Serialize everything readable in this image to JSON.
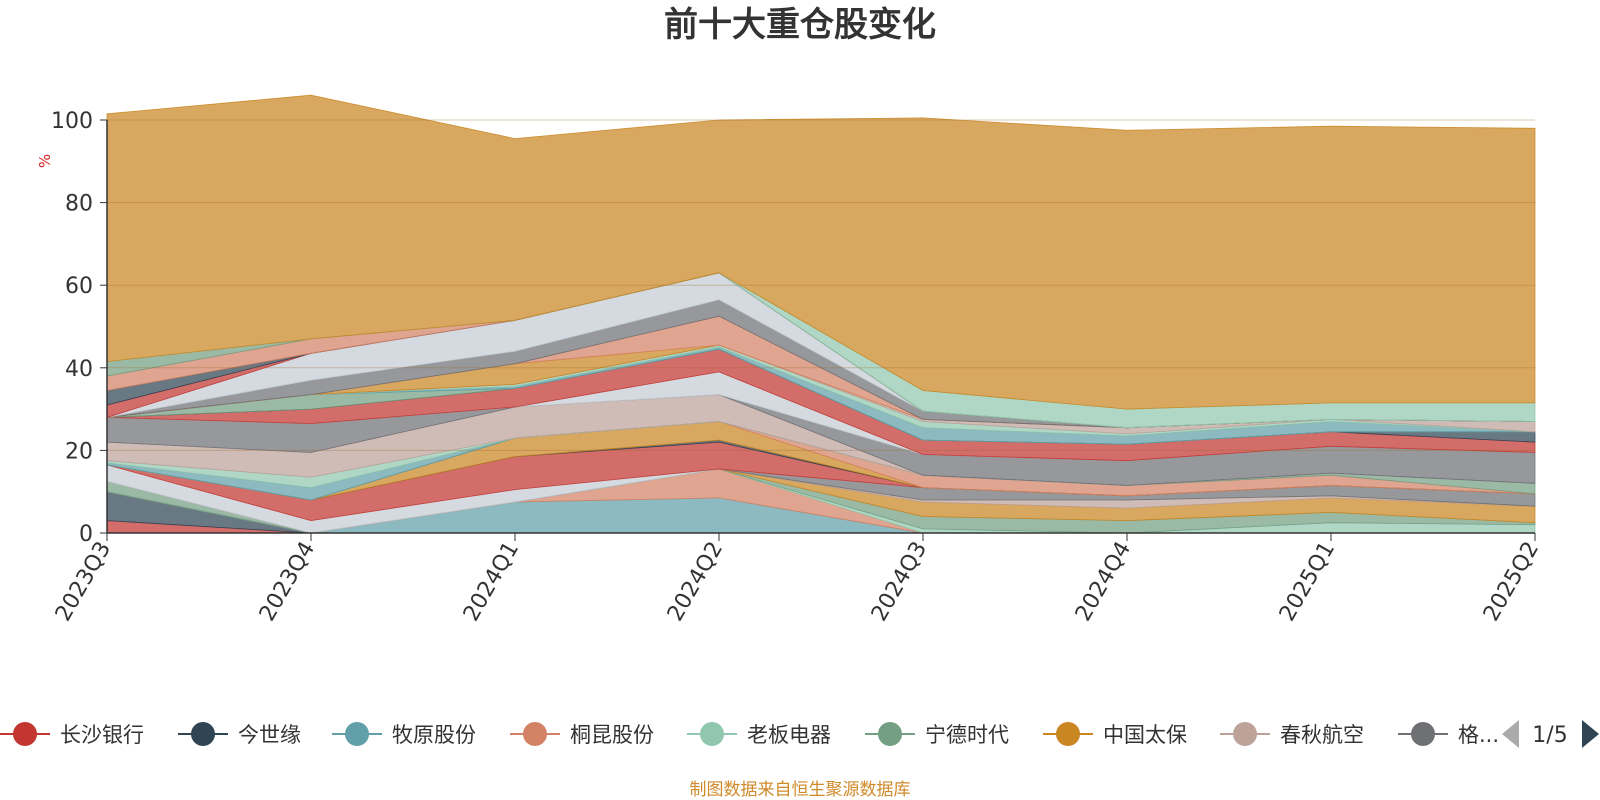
{
  "chart_data": {
    "type": "area",
    "stacked": true,
    "title": "前十大重仓股变化",
    "ylabel": "%",
    "ylim": [
      0,
      100
    ],
    "yticks": [
      0,
      20,
      40,
      60,
      80,
      100
    ],
    "grid": true,
    "categories": [
      "2023Q3",
      "2023Q4",
      "2024Q1",
      "2024Q2",
      "2024Q3",
      "2024Q4",
      "2025Q1",
      "2025Q2"
    ],
    "series": [
      {
        "name": "",
        "color": "#c23531",
        "values": [
          3.0,
          0,
          0,
          0,
          0,
          0,
          0,
          0
        ]
      },
      {
        "name": "",
        "color": "#2f4554",
        "values": [
          7.0,
          0,
          0,
          0,
          0,
          0,
          0,
          0
        ]
      },
      {
        "name": "",
        "color": "#61a0a8",
        "values": [
          0,
          0,
          7.5,
          8.5,
          0,
          0,
          0,
          0
        ]
      },
      {
        "name": "",
        "color": "#d48265",
        "values": [
          0,
          0,
          0,
          7.0,
          0,
          0,
          0,
          0
        ]
      },
      {
        "name": "",
        "color": "#91c7ae",
        "values": [
          0,
          0,
          0,
          0,
          1.0,
          0,
          2.5,
          2.0
        ]
      },
      {
        "name": "",
        "color": "#749f83",
        "values": [
          2.5,
          0,
          0,
          0,
          3.0,
          3.0,
          2.5,
          0.5
        ]
      },
      {
        "name": "",
        "color": "#ca8622",
        "values": [
          0,
          0,
          0,
          0,
          3.5,
          3.0,
          3.5,
          4.0
        ]
      },
      {
        "name": "",
        "color": "#bda29a",
        "values": [
          0,
          0,
          0,
          0,
          0.5,
          2.0,
          0.5,
          0
        ]
      },
      {
        "name": "",
        "color": "#6e7074",
        "values": [
          0,
          0,
          0,
          0,
          3.0,
          1.0,
          2.5,
          3.0
        ]
      },
      {
        "name": "",
        "color": "#c4ccd3",
        "values": [
          4.0,
          3.0,
          3.0,
          0,
          0,
          0,
          0,
          0
        ]
      },
      {
        "name": "",
        "color": "#c23531",
        "values": [
          0,
          5.0,
          8.0,
          6.5,
          0,
          0,
          0,
          0
        ]
      },
      {
        "name": "",
        "color": "#2f4554",
        "values": [
          0,
          0,
          0,
          0.5,
          0,
          0,
          0,
          0
        ]
      },
      {
        "name": "",
        "color": "#ca8622",
        "values": [
          0,
          0,
          4.5,
          4.5,
          0,
          0,
          0,
          0
        ]
      },
      {
        "name": "",
        "color": "#d48265",
        "values": [
          0,
          0,
          0,
          0,
          3.0,
          2.5,
          2.5,
          0
        ]
      },
      {
        "name": "",
        "color": "#749f83",
        "values": [
          0,
          0,
          0,
          0,
          0,
          0,
          0.5,
          2.5
        ]
      },
      {
        "name": "",
        "color": "#61a0a8",
        "values": [
          0.5,
          3.0,
          0,
          0,
          0,
          0,
          0,
          0
        ]
      },
      {
        "name": "",
        "color": "#91c7ae",
        "values": [
          0.5,
          2.5,
          0,
          0,
          0,
          0,
          0,
          0
        ]
      },
      {
        "name": "",
        "color": "#bda29a",
        "values": [
          4.5,
          6.0,
          7.5,
          6.5,
          0,
          0,
          0,
          0
        ]
      },
      {
        "name": "",
        "color": "#6e7074",
        "values": [
          6.0,
          7.0,
          0,
          0,
          5.0,
          6.0,
          6.5,
          7.5
        ]
      },
      {
        "name": "",
        "color": "#c4ccd3",
        "values": [
          0,
          0,
          0,
          5.5,
          0,
          0,
          0,
          0
        ]
      },
      {
        "name": "",
        "color": "#c23531",
        "values": [
          0,
          3.5,
          4.5,
          5.5,
          3.5,
          4.0,
          3.5,
          2.5
        ]
      },
      {
        "name": "",
        "color": "#2f4554",
        "values": [
          0,
          0,
          0,
          0,
          0,
          0,
          0,
          2.5
        ]
      },
      {
        "name": "",
        "color": "#749f83",
        "values": [
          0,
          3.5,
          0,
          0,
          0,
          0,
          0,
          0
        ]
      },
      {
        "name": "",
        "color": "#61a0a8",
        "values": [
          0,
          0,
          0.5,
          0.5,
          3.0,
          2.0,
          2.5,
          0
        ]
      },
      {
        "name": "",
        "color": "#91c7ae",
        "values": [
          0,
          0,
          0.5,
          0.5,
          1.5,
          0.5,
          0.5,
          0
        ]
      },
      {
        "name": "",
        "color": "#bda29a",
        "values": [
          0,
          0,
          0,
          0,
          0.5,
          1.5,
          0,
          2.5
        ]
      },
      {
        "name": "",
        "color": "#ca8622",
        "values": [
          0,
          0,
          5.0,
          0,
          0,
          0,
          0,
          0
        ]
      },
      {
        "name": "",
        "color": "#d48265",
        "values": [
          0,
          0,
          0,
          7.0,
          0,
          0,
          0,
          0
        ]
      },
      {
        "name": "",
        "color": "#6e7074",
        "values": [
          0,
          3.5,
          3.0,
          4.0,
          2.0,
          0,
          0,
          0
        ]
      },
      {
        "name": "",
        "color": "#c4ccd3",
        "values": [
          0,
          6.5,
          7.5,
          6.5,
          0,
          0,
          0,
          0
        ]
      },
      {
        "name": "",
        "color": "#c23531",
        "values": [
          3.0,
          0,
          0,
          0,
          0,
          0,
          0,
          0
        ]
      },
      {
        "name": "",
        "color": "#2f4554",
        "values": [
          3.5,
          0,
          0,
          0,
          0,
          0,
          0,
          0
        ]
      },
      {
        "name": "",
        "color": "#d48265",
        "values": [
          3.5,
          3.5,
          0,
          0,
          0,
          0,
          0,
          0
        ]
      },
      {
        "name": "",
        "color": "#749f83",
        "values": [
          3.5,
          0,
          0,
          0,
          0,
          0,
          0,
          0
        ]
      },
      {
        "name": "",
        "color": "#91c7ae",
        "values": [
          0,
          0,
          0,
          0,
          5.0,
          4.5,
          4.0,
          4.5
        ]
      },
      {
        "name": "",
        "color": "#ca8622",
        "values": [
          60.0,
          59.0,
          44.0,
          37.0,
          66.0,
          67.5,
          67.0,
          66.5
        ]
      }
    ],
    "legend": {
      "position": "bottom",
      "items": [
        {
          "label": "长沙银行",
          "color": "#c23531"
        },
        {
          "label": "今世缘",
          "color": "#2f4554"
        },
        {
          "label": "牧原股份",
          "color": "#61a0a8"
        },
        {
          "label": "桐昆股份",
          "color": "#d48265"
        },
        {
          "label": "老板电器",
          "color": "#91c7ae"
        },
        {
          "label": "宁德时代",
          "color": "#749f83"
        },
        {
          "label": "中国太保",
          "color": "#ca8622"
        },
        {
          "label": "春秋航空",
          "color": "#bda29a"
        },
        {
          "label": "格...",
          "color": "#6e7074"
        }
      ],
      "page": "1/5"
    },
    "source": "制图数据来自恒生聚源数据库"
  }
}
